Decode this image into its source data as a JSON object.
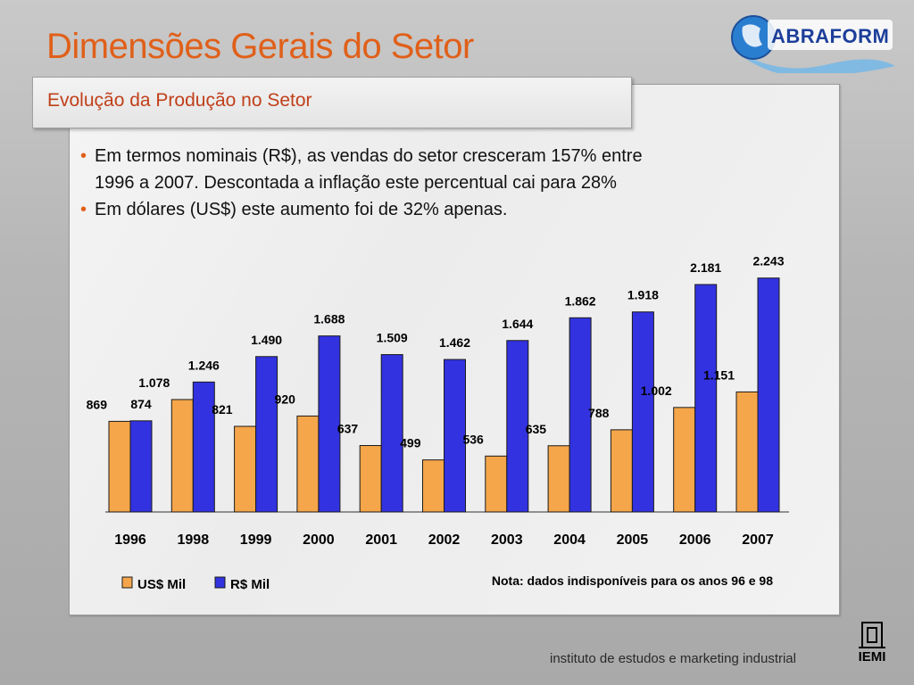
{
  "header": {
    "title": "Dimensões Gerais do Setor",
    "subtitle": "Evolução da Produção no Setor"
  },
  "bullets": [
    "Em termos nominais (R$), as vendas do setor cresceram 157% entre",
    "1996 a 2007. Descontada a inflação este percentual cai para 28%",
    "Em dólares (US$) este aumento foi de 32% apenas."
  ],
  "logo": {
    "text": "ABRAFORM"
  },
  "footer": {
    "text": "instituto de estudos e marketing industrial",
    "logo_text": "IEMI"
  },
  "colors": {
    "title": "#e0601a",
    "us_series": "#f5a64a",
    "rs_series": "#3232e0"
  },
  "chart_data": {
    "type": "bar",
    "categories": [
      "1996",
      "1998",
      "1999",
      "2000",
      "2001",
      "2002",
      "2003",
      "2004",
      "2005",
      "2006",
      "2007"
    ],
    "series": [
      {
        "name": "US$ Mil",
        "values": [
          869,
          1078,
          821,
          920,
          637,
          499,
          536,
          635,
          788,
          1002,
          1151
        ],
        "labels": [
          "869",
          "1.078",
          "821",
          "920",
          "637",
          "499",
          "536",
          "635",
          "788",
          "1.002",
          "1.151"
        ],
        "color": "#f5a64a"
      },
      {
        "name": "R$ Mil",
        "values": [
          874,
          1246,
          1490,
          1688,
          1509,
          1462,
          1644,
          1862,
          1918,
          2181,
          2243
        ],
        "labels": [
          "874",
          "1.246",
          "1.490",
          "1.688",
          "1.509",
          "1.462",
          "1.644",
          "1.862",
          "1.918",
          "2.181",
          "2.243"
        ],
        "color": "#3232e0"
      }
    ],
    "ylim": [
      0,
      2600
    ],
    "legend": "bottom-left",
    "note": "Nota: dados indisponíveis para os anos 96 e 98"
  }
}
